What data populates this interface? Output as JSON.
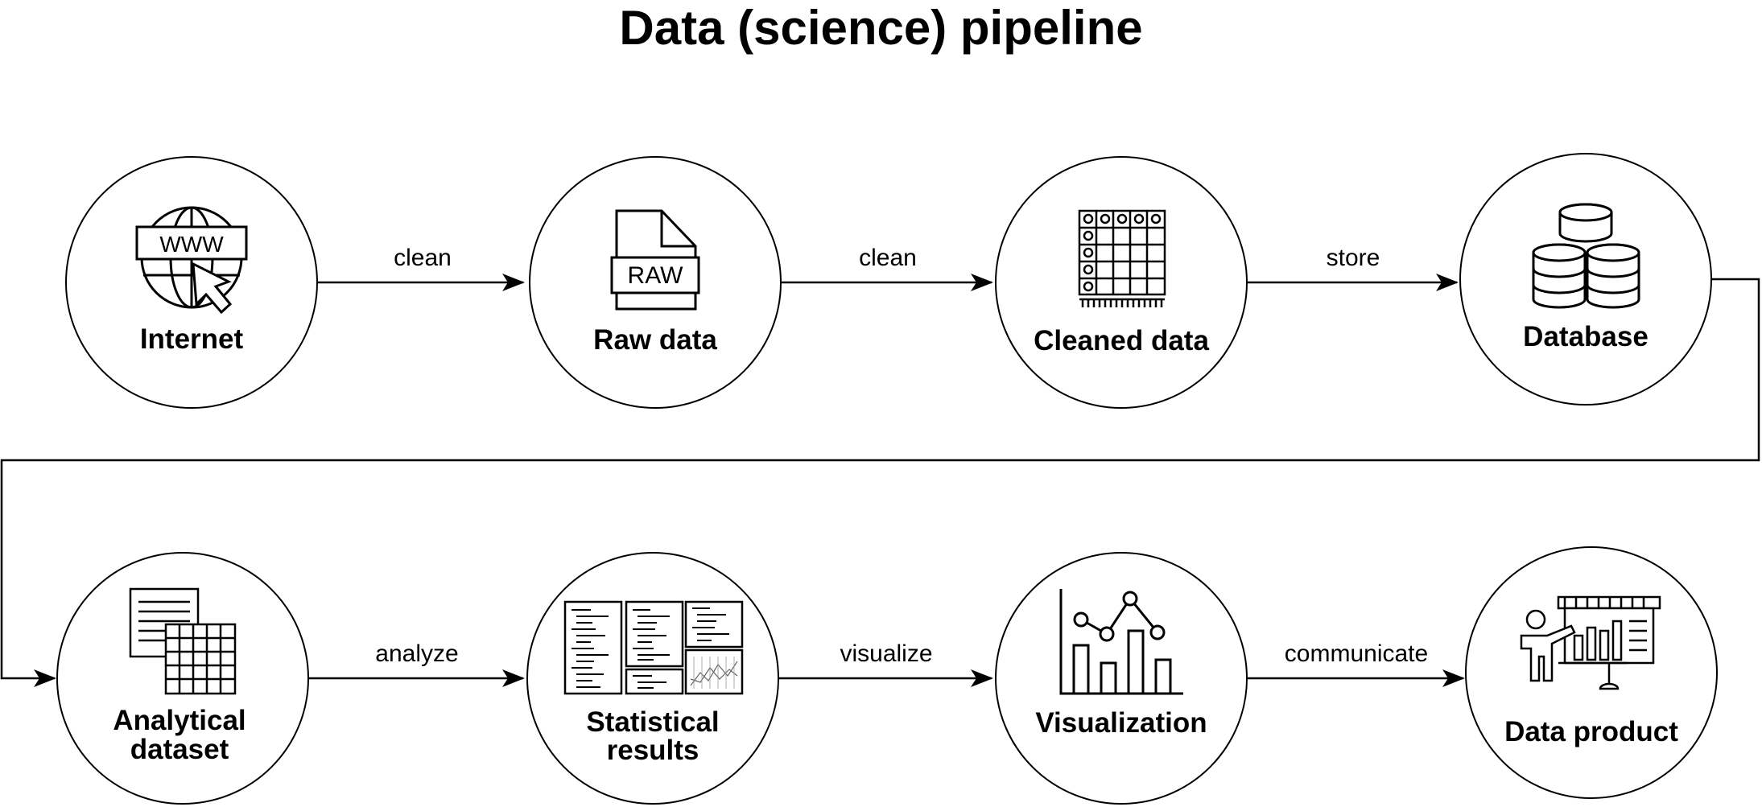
{
  "title": "Data (science) pipeline",
  "nodes": [
    {
      "label": "Internet",
      "icon": "globe-www-cursor-icon"
    },
    {
      "label": "Raw data",
      "icon": "raw-file-icon"
    },
    {
      "label": "Cleaned data",
      "icon": "data-grid-icon"
    },
    {
      "label": "Database",
      "icon": "database-stack-icon"
    },
    {
      "label_line1": "Analytical",
      "label_line2": "dataset",
      "icon": "document-table-icon"
    },
    {
      "label_line1": "Statistical",
      "label_line2": "results",
      "icon": "statistical-output-icon"
    },
    {
      "label": "Visualization",
      "icon": "bar-line-chart-icon"
    },
    {
      "label": "Data product",
      "icon": "presenter-board-icon"
    }
  ],
  "edges": [
    {
      "label": "clean"
    },
    {
      "label": "clean"
    },
    {
      "label": "store"
    },
    {
      "label": "analyze"
    },
    {
      "label": "visualize"
    },
    {
      "label": "communicate"
    }
  ]
}
